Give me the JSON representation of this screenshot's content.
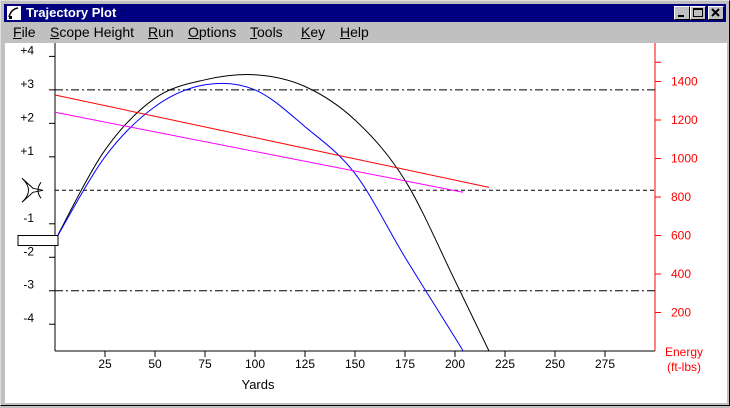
{
  "window": {
    "title": "Trajectory Plot",
    "icon": "rifle-scope-app-icon",
    "controls": [
      "minimize-icon",
      "maximize-icon",
      "close-icon"
    ]
  },
  "menu": [
    {
      "label": "File",
      "ul": "F",
      "rest": "ile"
    },
    {
      "label": "Scope Height",
      "ul": "S",
      "rest": "cope Height"
    },
    {
      "label": "Run",
      "ul": "R",
      "rest": "un"
    },
    {
      "label": "Options",
      "ul": "O",
      "rest": "ptions"
    },
    {
      "label": "Tools",
      "ul": "T",
      "rest": "ools"
    },
    {
      "label": "Key",
      "ul": "K",
      "rest": "ey"
    },
    {
      "label": "Help",
      "ul": "H",
      "rest": "elp"
    }
  ],
  "chart_data": {
    "type": "line",
    "xlabel": "Yards",
    "x_ticks": [
      "25",
      "50",
      "75",
      "100",
      "125",
      "150",
      "175",
      "200",
      "225",
      "250",
      "275"
    ],
    "left_ticks": [
      "+4",
      "+3",
      "+2",
      "+1",
      "-1",
      "-2",
      "-3",
      "-4"
    ],
    "right_ylabel": [
      "Energy",
      "(ft-lbs)"
    ],
    "right_ticks": [
      "1400",
      "1200",
      "1000",
      "800",
      "600",
      "400",
      "200"
    ],
    "xlim": [
      0,
      300
    ],
    "left_ylim": [
      -4.8,
      4.4
    ],
    "right_ylim": [
      0,
      1600
    ],
    "reference_lines": [
      {
        "y": 3,
        "style": "dash-dot"
      },
      {
        "y": 0,
        "style": "dashed"
      },
      {
        "y": -3,
        "style": "dash-dot"
      }
    ],
    "colors": {
      "trajectory_black": "#000000",
      "trajectory_blue": "#0000ff",
      "energy_red": "#ff0000",
      "energy_magenta": "#ff00ff",
      "energy_axis": "#ff0000"
    },
    "series": [
      {
        "axis": "left",
        "color": "#000000",
        "x": [
          0,
          25,
          50,
          75,
          100,
          125,
          150,
          175,
          200,
          217
        ],
        "y": [
          -1.5,
          1.2,
          2.75,
          3.3,
          3.45,
          3.1,
          2.1,
          0.3,
          -2.7,
          -4.8
        ]
      },
      {
        "axis": "left",
        "color": "#0000ff",
        "x": [
          0,
          25,
          50,
          75,
          100,
          125,
          150,
          175,
          200,
          204
        ],
        "y": [
          -1.5,
          1.0,
          2.5,
          3.15,
          3.0,
          1.9,
          0.5,
          -2.0,
          -4.4,
          -4.8
        ]
      },
      {
        "axis": "right",
        "color": "#ff0000",
        "x": [
          0,
          217
        ],
        "y": [
          1330,
          850
        ]
      },
      {
        "axis": "right",
        "color": "#ff00ff",
        "x": [
          0,
          204
        ],
        "y": [
          1240,
          825
        ]
      }
    ],
    "reticle": {
      "y": 0,
      "label": "scope-reticle-icon"
    },
    "barrel": {
      "y": -1.5,
      "label": "barrel-icon"
    }
  }
}
